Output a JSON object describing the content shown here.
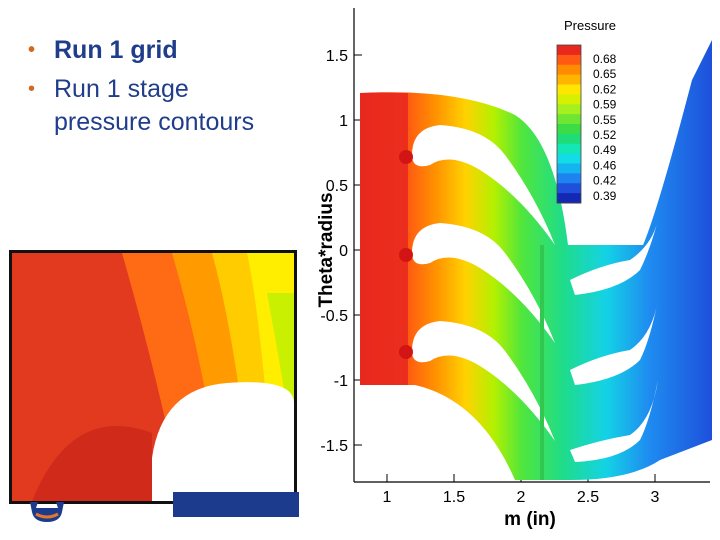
{
  "bullets": [
    {
      "text": "Run 1 grid",
      "bold": true
    },
    {
      "text": "Run 1 stage pressure contours",
      "line1": "Run 1 stage",
      "line2": "pressure contours",
      "bold": false
    }
  ],
  "chart": {
    "xlabel": "m (in)",
    "ylabel": "Theta*radius",
    "legend_title": "Pressure",
    "x_ticks": [
      "1",
      "1.5",
      "2",
      "2.5",
      "3"
    ],
    "y_ticks": [
      "1.5",
      "1",
      "0.5",
      "0",
      "-0.5",
      "-1",
      "-1.5"
    ],
    "legend_levels": [
      "0.68",
      "0.65",
      "0.62",
      "0.59",
      "0.55",
      "0.52",
      "0.49",
      "0.46",
      "0.42",
      "0.39"
    ],
    "legend_colors": [
      "#e8281e",
      "#ff5a14",
      "#ff8c00",
      "#ffb400",
      "#ffe600",
      "#d7f000",
      "#a5f01e",
      "#6ee632",
      "#3cdc46",
      "#1edc78",
      "#14e6b4",
      "#14dce6",
      "#14b4f0",
      "#1e82f0",
      "#1e50dc",
      "#1428b4"
    ]
  },
  "colors": {
    "bullet_text": "#1f3d8a",
    "bullet_dot": "#d2691e",
    "bar": "#1c3b8c"
  }
}
